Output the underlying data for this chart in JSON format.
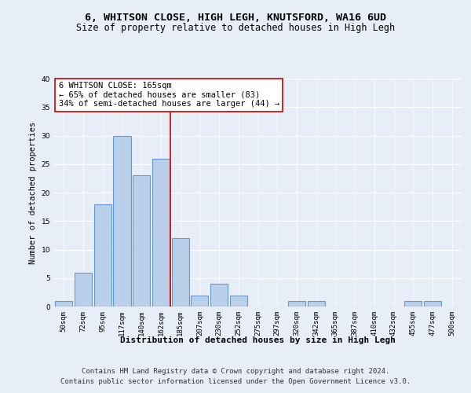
{
  "title": "6, WHITSON CLOSE, HIGH LEGH, KNUTSFORD, WA16 6UD",
  "subtitle": "Size of property relative to detached houses in High Legh",
  "xlabel": "Distribution of detached houses by size in High Legh",
  "ylabel": "Number of detached properties",
  "bin_labels": [
    "50sqm",
    "72sqm",
    "95sqm",
    "117sqm",
    "140sqm",
    "162sqm",
    "185sqm",
    "207sqm",
    "230sqm",
    "252sqm",
    "275sqm",
    "297sqm",
    "320sqm",
    "342sqm",
    "365sqm",
    "387sqm",
    "410sqm",
    "432sqm",
    "455sqm",
    "477sqm",
    "500sqm"
  ],
  "values": [
    1,
    6,
    18,
    30,
    23,
    26,
    12,
    2,
    4,
    2,
    0,
    0,
    1,
    1,
    0,
    0,
    0,
    0,
    1,
    1,
    0
  ],
  "bar_color": "#b8d0ea",
  "bar_edge_color": "#6699cc",
  "bar_linewidth": 0.8,
  "vline_x": 5.5,
  "vline_color": "#cc0000",
  "vline_linewidth": 1.2,
  "annotation_text": "6 WHITSON CLOSE: 165sqm\n← 65% of detached houses are smaller (83)\n34% of semi-detached houses are larger (44) →",
  "annotation_box_color": "#ffffff",
  "annotation_box_edge": "#cc0000",
  "ylim": [
    0,
    40
  ],
  "yticks": [
    0,
    5,
    10,
    15,
    20,
    25,
    30,
    35,
    40
  ],
  "background_color": "#e8eef8",
  "plot_background": "#e8eef8",
  "footer_line1": "Contains HM Land Registry data © Crown copyright and database right 2024.",
  "footer_line2": "Contains public sector information licensed under the Open Government Licence v3.0.",
  "title_fontsize": 9.5,
  "subtitle_fontsize": 8.5,
  "ylabel_fontsize": 7.5,
  "xlabel_fontsize": 8.0,
  "tick_fontsize": 6.5,
  "annotation_fontsize": 7.5,
  "footer_fontsize": 6.5
}
